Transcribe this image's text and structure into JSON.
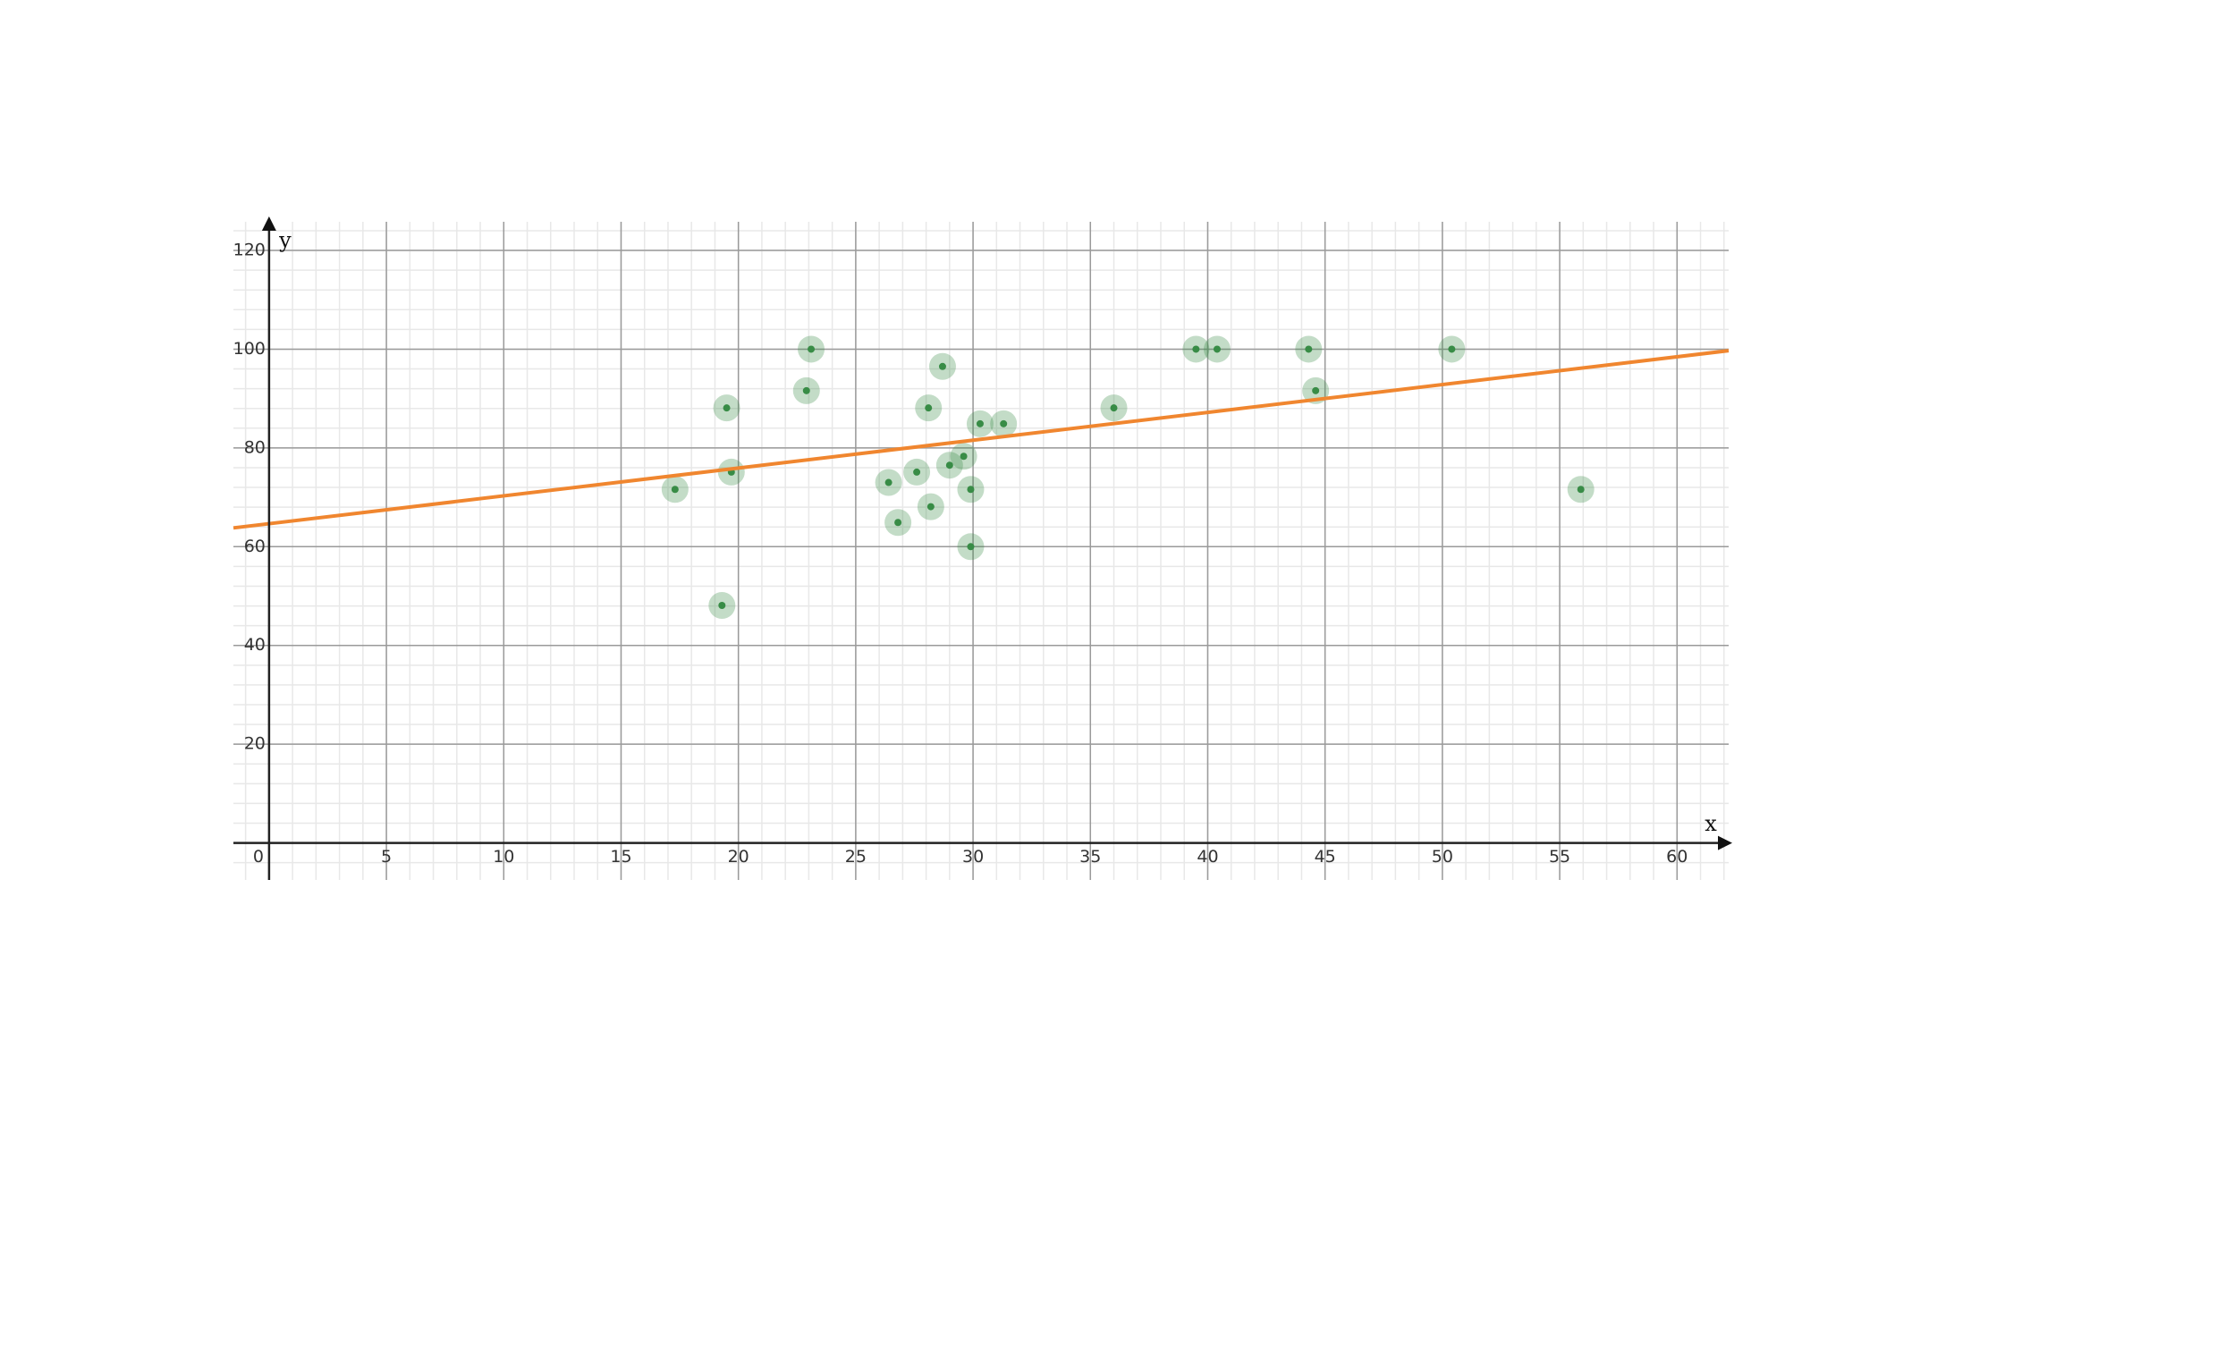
{
  "chart_data": {
    "type": "scatter",
    "x_label": "x",
    "y_label": "y",
    "xlim": [
      -1.52,
      62.2
    ],
    "ylim": [
      -7.5,
      125.8
    ],
    "xticks": [
      0,
      5,
      10,
      15,
      20,
      25,
      30,
      35,
      40,
      45,
      50,
      55,
      60
    ],
    "yticks": [
      20,
      40,
      60,
      80,
      100,
      120
    ],
    "grid": true,
    "series": [
      {
        "color": "#388c46",
        "x": [
          17.3,
          19.3,
          19.5,
          19.7,
          22.9,
          23.1,
          26.4,
          26.8,
          27.6,
          28.1,
          28.2,
          28.7,
          29.0,
          29.6,
          29.9,
          29.9,
          30.3,
          31.3,
          36.0,
          39.5,
          40.4,
          44.3,
          44.6,
          50.4,
          55.9
        ],
        "values": [
          71.6,
          48.1,
          88.1,
          75.1,
          91.6,
          100,
          73,
          64.9,
          75.1,
          88.1,
          68.1,
          96.5,
          76.5,
          78.3,
          71.6,
          60,
          84.9,
          84.9,
          88.1,
          100,
          100,
          100,
          91.6,
          100,
          71.6
        ]
      },
      {
        "type": "line",
        "color": "#f0862f",
        "x": [
          -1.52,
          62.2
        ],
        "values": [
          63.8,
          99.7
        ]
      }
    ]
  }
}
